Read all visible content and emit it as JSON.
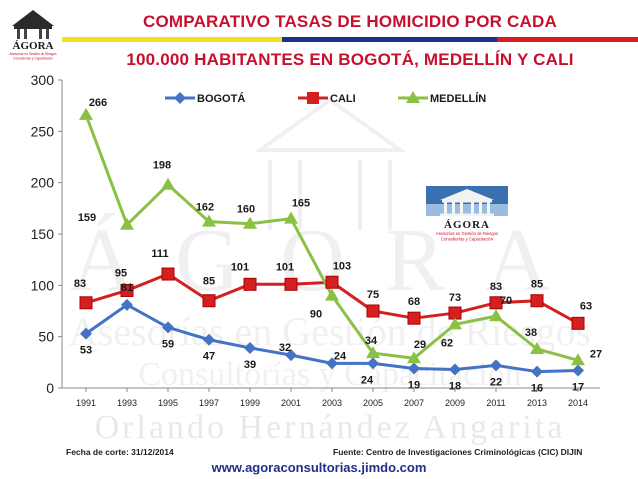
{
  "header": {
    "title_line1": "COMPARATIVO  TASAS DE HOMICIDIO POR CADA",
    "title_line2": "100.000 HABITANTES EN BOGOTÁ, MEDELLÍN Y CALI",
    "logo_text": "ÁGORA",
    "logo_subtitle": "Asesorías en Gestión de Riesgos",
    "logo_subtitle2": "Consultorías y Capacitación"
  },
  "watermark": {
    "line1": "ÁGORA",
    "line2": "Asesorías en Gestión de Riesgos",
    "line3": "Consultorías y Capacitación",
    "line4": "Orlando Hernández Angarita"
  },
  "footer": {
    "cutoff": "Fecha de corte: 31/12/2014",
    "source": "Fuente: Centro de Investigaciones Criminológicas (CIC) DIJIN",
    "website": "www.agoraconsultorias.jimdo.com"
  },
  "colors": {
    "title": "#c8102e",
    "bogota": "#4472c4",
    "cali": "#d42020",
    "medellin": "#8ac043"
  },
  "chart_data": {
    "type": "line",
    "title": "COMPARATIVO  TASAS DE HOMICIDIO POR CADA 100.000 HABITANTES EN BOGOTÁ, MEDELLÍN Y CALI",
    "x": [
      "1991",
      "1993",
      "1995",
      "1997",
      "1999",
      "2001",
      "2003",
      "2005",
      "2007",
      "2009",
      "2011",
      "2013",
      "2014"
    ],
    "yticks": [
      "0",
      "50",
      "100",
      "150",
      "200",
      "250",
      "300"
    ],
    "ylim": [
      0,
      300
    ],
    "legend_position": "top",
    "series": [
      {
        "name": "BOGOTÁ",
        "marker": "diamond",
        "values": [
          53,
          81,
          59,
          47,
          39,
          32,
          24,
          24,
          19,
          18,
          22,
          16,
          17
        ],
        "labels": [
          "53",
          "81",
          "59",
          "47",
          "39",
          "32",
          "24",
          "24",
          "19",
          "18",
          "22",
          "16",
          "17"
        ]
      },
      {
        "name": "CALI",
        "marker": "square",
        "values": [
          83,
          95,
          111,
          85,
          101,
          101,
          103,
          75,
          68,
          73,
          83,
          85,
          63
        ],
        "labels": [
          "83",
          "95",
          "111",
          "85",
          "101",
          "101",
          "103",
          "75",
          "68",
          "73",
          "83",
          "85",
          "63"
        ]
      },
      {
        "name": "MEDELLÍN",
        "marker": "triangle",
        "values": [
          266,
          159,
          198,
          162,
          160,
          165,
          90,
          34,
          29,
          62,
          70,
          38,
          27
        ],
        "labels": [
          "266",
          "159",
          "198",
          "162",
          "160",
          "165",
          "90",
          "34",
          "29",
          "62",
          "70",
          "38",
          "27"
        ]
      }
    ]
  }
}
